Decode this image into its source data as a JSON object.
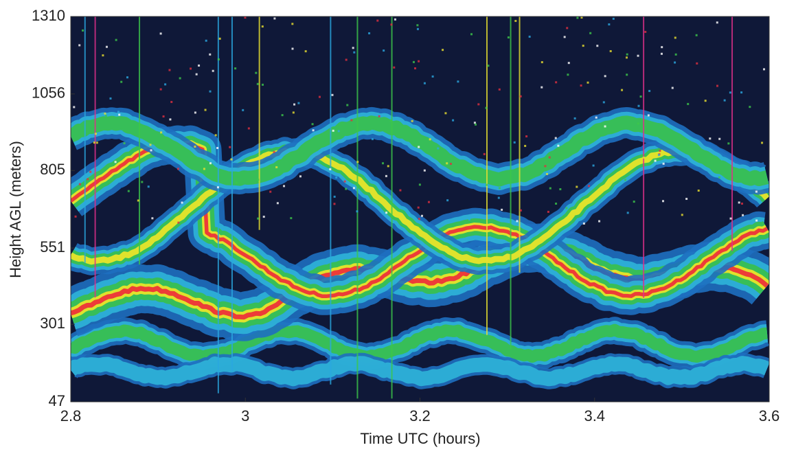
{
  "chart_data": {
    "type": "image",
    "x_label": "Time UTC (hours)",
    "y_label": "Height AGL (meters)",
    "xlim": [
      2.8,
      3.6
    ],
    "xticks": [
      2.8,
      3,
      3.2,
      3.4,
      3.6
    ],
    "ylim": [
      47,
      1310
    ],
    "yticks": [
      47,
      301,
      551,
      805,
      1056,
      1310
    ]
  }
}
